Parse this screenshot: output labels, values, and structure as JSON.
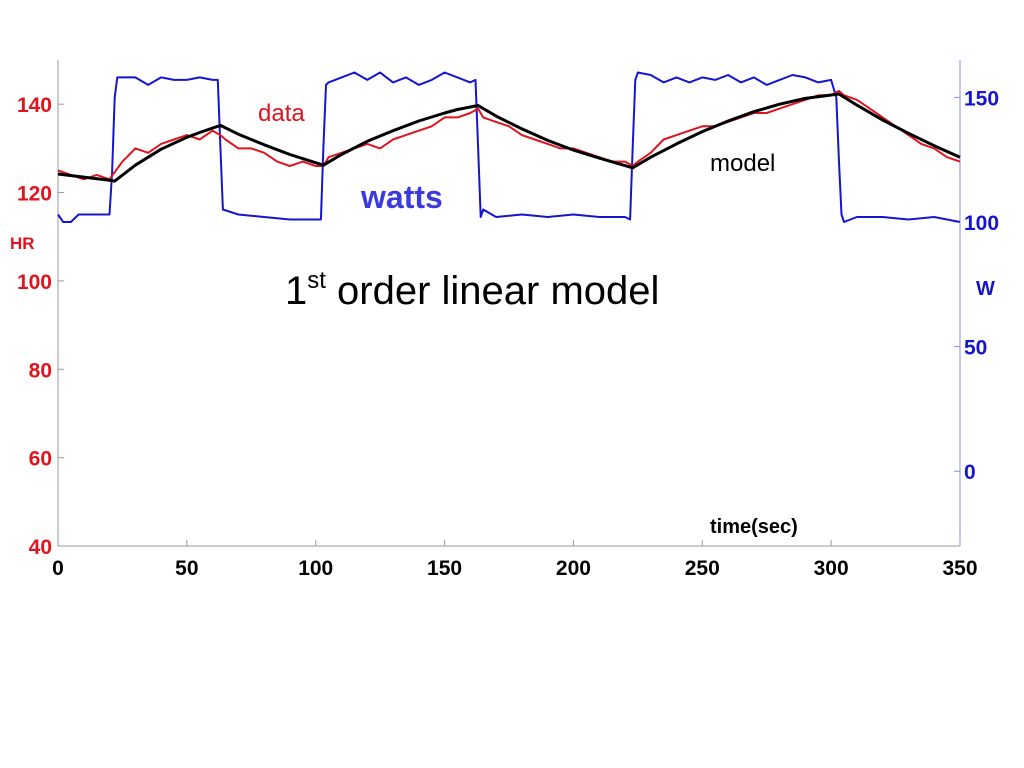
{
  "chart_data": {
    "type": "line",
    "title": "1st order linear model",
    "title_main": "1",
    "title_sup": "st",
    "title_rest": " order linear model",
    "xlabel": "time(sec)",
    "ylabel_left": "HR",
    "ylabel_right": "W",
    "xlim": [
      0,
      350
    ],
    "ylim_left": [
      40,
      150
    ],
    "ylim_right": [
      -30,
      165
    ],
    "x_ticks": [
      0,
      50,
      100,
      150,
      200,
      250,
      300,
      350
    ],
    "y_ticks_left": [
      40,
      60,
      80,
      100,
      120,
      140
    ],
    "y_ticks_right": [
      0,
      50,
      100,
      150
    ],
    "grid": false,
    "annotations": {
      "data": "data",
      "watts": "watts",
      "model": "model"
    },
    "colors": {
      "data": "#e0141e",
      "watts": "#1515cf",
      "model": "#000000",
      "title": "#000000",
      "watts_label": "#3a3ae0"
    },
    "series": [
      {
        "name": "data",
        "axis": "left",
        "x": [
          0,
          5,
          10,
          15,
          20,
          25,
          30,
          35,
          40,
          45,
          50,
          55,
          60,
          63,
          65,
          70,
          75,
          80,
          85,
          90,
          95,
          100,
          103,
          105,
          110,
          115,
          120,
          125,
          130,
          135,
          140,
          145,
          150,
          155,
          160,
          163,
          165,
          170,
          175,
          180,
          185,
          190,
          195,
          200,
          205,
          210,
          215,
          220,
          223,
          225,
          230,
          235,
          240,
          245,
          250,
          255,
          260,
          265,
          270,
          275,
          280,
          285,
          290,
          295,
          300,
          303,
          305,
          310,
          315,
          320,
          325,
          330,
          335,
          340,
          345,
          350
        ],
        "values": [
          125,
          124,
          123,
          124,
          123,
          127,
          130,
          129,
          131,
          132,
          133,
          132,
          134,
          133,
          132,
          130,
          130,
          129,
          127,
          126,
          127,
          126,
          126,
          128,
          129,
          130,
          131,
          130,
          132,
          133,
          134,
          135,
          137,
          137,
          138,
          139,
          137,
          136,
          135,
          133,
          132,
          131,
          130,
          130,
          129,
          128,
          127,
          127,
          126,
          127,
          129,
          132,
          133,
          134,
          135,
          135,
          136,
          137,
          138,
          138,
          139,
          140,
          141,
          142,
          142,
          143,
          142,
          141,
          139,
          137,
          135,
          133,
          131,
          130,
          128,
          127
        ]
      },
      {
        "name": "model",
        "axis": "left",
        "x": [
          0,
          10,
          20,
          22,
          30,
          40,
          50,
          55,
          63,
          70,
          80,
          90,
          103,
          110,
          120,
          130,
          140,
          150,
          155,
          163,
          170,
          180,
          190,
          200,
          210,
          223,
          230,
          240,
          250,
          260,
          270,
          280,
          290,
          303,
          310,
          320,
          330,
          340,
          350
        ],
        "values": [
          124.2,
          123.5,
          122.8,
          122.6,
          126.2,
          129.8,
          132.5,
          133.6,
          135.2,
          133.2,
          130.8,
          128.6,
          126.2,
          128.6,
          131.6,
          134.0,
          136.2,
          138.0,
          138.8,
          139.7,
          137.3,
          134.4,
          131.8,
          129.6,
          127.8,
          125.6,
          128.0,
          131.0,
          133.8,
          136.2,
          138.3,
          140.0,
          141.3,
          142.3,
          139.8,
          136.4,
          133.4,
          130.6,
          128.0
        ]
      },
      {
        "name": "watts",
        "axis": "right",
        "x": [
          0,
          2,
          5,
          8,
          20,
          21,
          22,
          23,
          24,
          30,
          35,
          40,
          45,
          50,
          55,
          60,
          62,
          63,
          64,
          70,
          80,
          90,
          100,
          102,
          103,
          104,
          105,
          110,
          115,
          120,
          125,
          130,
          135,
          140,
          145,
          150,
          155,
          160,
          162,
          163,
          164,
          165,
          170,
          180,
          190,
          200,
          210,
          220,
          222,
          223,
          224,
          225,
          230,
          235,
          240,
          245,
          250,
          255,
          260,
          265,
          270,
          275,
          280,
          285,
          290,
          295,
          300,
          302,
          303,
          304,
          305,
          310,
          320,
          330,
          340,
          350
        ],
        "values": [
          103,
          100,
          100,
          103,
          103,
          120,
          150,
          158,
          158,
          158,
          155,
          158,
          157,
          157,
          158,
          157,
          157,
          130,
          105,
          103,
          102,
          101,
          101,
          101,
          130,
          155,
          156,
          158,
          160,
          157,
          160,
          156,
          158,
          155,
          157,
          160,
          158,
          156,
          157,
          130,
          102,
          105,
          102,
          103,
          102,
          103,
          102,
          102,
          101,
          130,
          157,
          160,
          159,
          156,
          158,
          156,
          158,
          157,
          159,
          156,
          158,
          155,
          157,
          159,
          158,
          156,
          157,
          150,
          125,
          103,
          100,
          102,
          102,
          101,
          102,
          100
        ]
      }
    ]
  }
}
